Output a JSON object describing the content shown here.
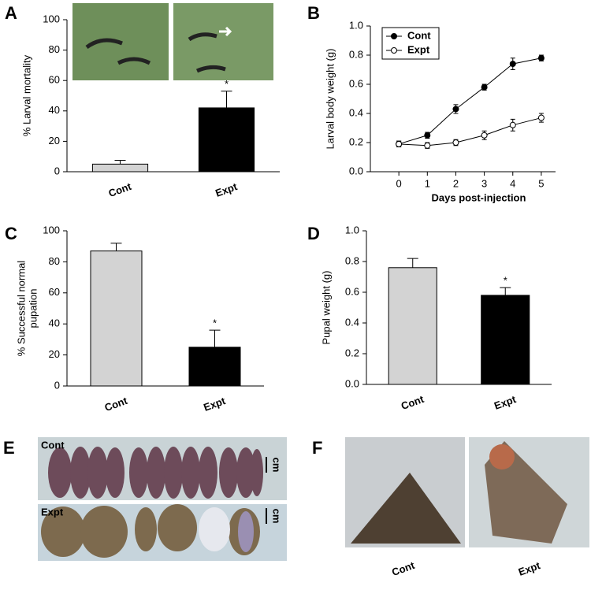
{
  "chart_data": [
    {
      "type": "bar",
      "panel": "A",
      "categories": [
        "Cont",
        "Expt"
      ],
      "values": [
        5,
        42
      ],
      "errors": [
        2.5,
        11
      ],
      "colors": [
        "#d3d3d3",
        "#000000"
      ],
      "marker_labels": [
        null,
        "*"
      ],
      "ylabel": [
        "% Larval mortality"
      ],
      "ylim": [
        0,
        100
      ],
      "yticks": [
        0,
        20,
        40,
        60,
        80,
        100
      ]
    },
    {
      "type": "line",
      "panel": "B",
      "x": [
        0,
        1,
        2,
        3,
        4,
        5
      ],
      "xlim": [
        -1,
        5.5
      ],
      "xticks": [
        0,
        1,
        2,
        3,
        4,
        5
      ],
      "xlabel": "Days post-injection",
      "ylabel": [
        "Larval body weight (g)"
      ],
      "ylim": [
        0,
        1
      ],
      "yticks": [
        {
          "value": 0,
          "label": "0.0"
        },
        0.2,
        0.4,
        0.6,
        0.8,
        {
          "value": 1,
          "label": "1.0"
        }
      ],
      "legend": "upper left",
      "series": [
        {
          "name": "Cont",
          "color": "#000000",
          "fill": "#000000",
          "values": [
            0.19,
            0.25,
            0.43,
            0.58,
            0.74,
            0.78
          ],
          "errors": [
            0.02,
            0.02,
            0.03,
            0.02,
            0.04,
            0.02
          ]
        },
        {
          "name": "Expt",
          "color": "#000000",
          "fill": "#ffffff",
          "values": [
            0.19,
            0.18,
            0.2,
            0.25,
            0.32,
            0.37
          ],
          "errors": [
            0.02,
            0.02,
            0.02,
            0.03,
            0.04,
            0.03
          ]
        }
      ]
    },
    {
      "type": "bar",
      "panel": "C",
      "categories": [
        "Cont",
        "Expt"
      ],
      "values": [
        87,
        25
      ],
      "errors": [
        5,
        11
      ],
      "colors": [
        "#d3d3d3",
        "#000000"
      ],
      "marker_labels": [
        null,
        "*"
      ],
      "ylabel": [
        "% Successful normal",
        "pupation"
      ],
      "ylim": [
        0,
        100
      ],
      "yticks": [
        0,
        20,
        40,
        60,
        80,
        100
      ]
    },
    {
      "type": "bar",
      "panel": "D",
      "categories": [
        "Cont",
        "Expt"
      ],
      "values": [
        0.76,
        0.58
      ],
      "errors": [
        0.06,
        0.05
      ],
      "colors": [
        "#d3d3d3",
        "#000000"
      ],
      "marker_labels": [
        null,
        "*"
      ],
      "ylabel": [
        "Pupal weight (g)"
      ],
      "ylim": [
        0,
        1
      ],
      "yticks": [
        {
          "value": 0,
          "label": "0.0"
        },
        0.2,
        0.4,
        0.6,
        0.8,
        {
          "value": 1,
          "label": "1.0"
        }
      ]
    }
  ],
  "photo_panels": {
    "E": {
      "panel": "E",
      "rows": [
        {
          "label": "Cont",
          "scale": "cm"
        },
        {
          "label": "Expt",
          "scale": "cm"
        }
      ]
    },
    "F": {
      "panel": "F",
      "captions": [
        "Cont",
        "Expt"
      ]
    }
  }
}
